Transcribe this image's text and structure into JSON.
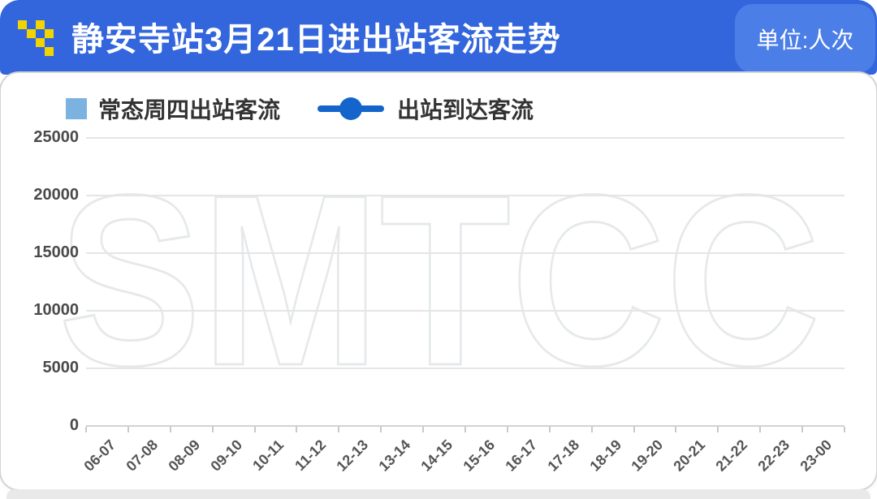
{
  "header": {
    "title": "静安寺站3月21日进出站客流走势",
    "unit_label": "单位:人次"
  },
  "legend": {
    "bar_label": "常态周四出站客流",
    "line_label": "出站到达客流"
  },
  "watermark": "SMTCC",
  "colors": {
    "header_blue": "#3366dd",
    "unit_box_blue": "#4c7ee8",
    "logo_yellow": "#f2d400",
    "bar_series_blue": "#7cb2e0",
    "line_series_blue": "#1564cb",
    "grid_gray": "#e5e5e5",
    "axis_text_gray": "#4a4a4a",
    "watermark_gray": "#e6e9eb"
  },
  "chart_data": {
    "type": "line",
    "title": "静安寺站3月21日进出站客流走势",
    "unit": "人次",
    "categories": [
      "06-07",
      "07-08",
      "08-09",
      "09-10",
      "10-11",
      "11-12",
      "12-13",
      "13-14",
      "14-15",
      "15-16",
      "16-17",
      "17-18",
      "18-19",
      "19-20",
      "20-21",
      "21-22",
      "22-23",
      "23-00"
    ],
    "y_ticks": [
      0,
      5000,
      10000,
      15000,
      20000,
      25000
    ],
    "y_tick_labels_top_down": [
      "25000",
      "20000",
      "15000",
      "10000",
      "5000",
      "0"
    ],
    "ylim": [
      0,
      25000
    ],
    "grid": true,
    "legend_position": "top-left",
    "series": [
      {
        "name": "常态周四出站客流",
        "type": "bar",
        "color": "#7cb2e0",
        "values": []
      },
      {
        "name": "出站到达客流",
        "type": "line",
        "color": "#1564cb",
        "values": []
      }
    ],
    "note": "Axes, gridlines and legend are rendered but no data points are plotted (empty chart)."
  }
}
